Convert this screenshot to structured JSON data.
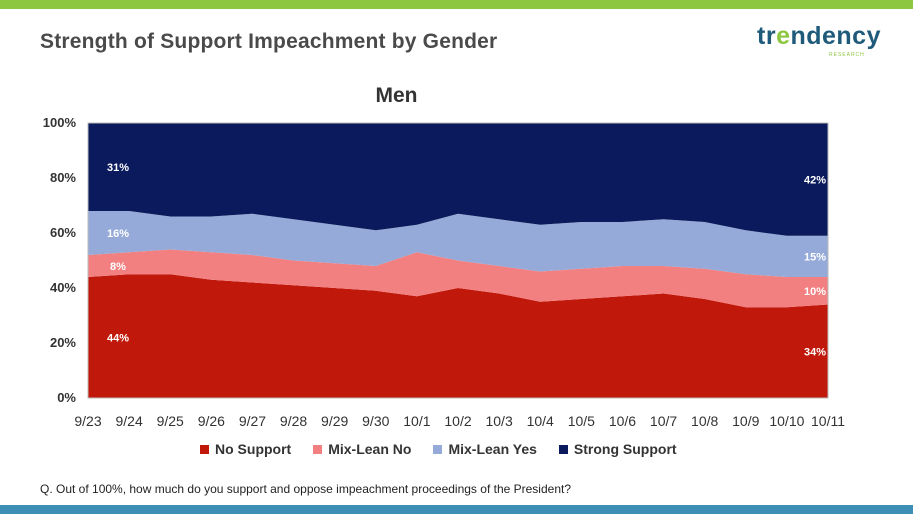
{
  "slide": {
    "title": "Strength of Support Impeachment by Gender",
    "logo_text": "trendency",
    "logo_subtext": "RESEARCH",
    "question": "Q. Out of 100%, how much do you support and oppose impeachment proceedings of the President?"
  },
  "colors": {
    "top_bar": "#8dc63f",
    "bottom_bar": "#3d8fb5"
  },
  "chart_data": {
    "type": "area",
    "stacked": true,
    "title": "Men",
    "xlabel": "",
    "ylabel": "",
    "ylim": [
      0,
      100
    ],
    "yticks": [
      "0%",
      "20%",
      "40%",
      "60%",
      "80%",
      "100%"
    ],
    "x": [
      "9/23",
      "9/24",
      "9/25",
      "9/26",
      "9/27",
      "9/28",
      "9/29",
      "9/30",
      "10/1",
      "10/2",
      "10/3",
      "10/4",
      "10/5",
      "10/6",
      "10/7",
      "10/8",
      "10/9",
      "10/10",
      "10/11"
    ],
    "legend_position": "bottom",
    "grid": false,
    "series": [
      {
        "name": "No Support",
        "color": "#c0180a",
        "values": [
          44,
          45,
          45,
          43,
          42,
          41,
          40,
          39,
          37,
          40,
          38,
          35,
          36,
          37,
          38,
          36,
          33,
          33,
          34
        ]
      },
      {
        "name": "Mix-Lean No",
        "color": "#f28080",
        "values": [
          8,
          8,
          9,
          10,
          10,
          9,
          9,
          9,
          16,
          10,
          10,
          11,
          11,
          11,
          10,
          11,
          12,
          11,
          10
        ]
      },
      {
        "name": "Mix-Lean Yes",
        "color": "#95aad8",
        "values": [
          16,
          15,
          12,
          13,
          15,
          15,
          14,
          13,
          10,
          17,
          17,
          17,
          17,
          16,
          17,
          17,
          16,
          15,
          15
        ]
      },
      {
        "name": "Strong Support",
        "color": "#0a1a5c",
        "values": [
          31,
          32,
          34,
          34,
          33,
          35,
          37,
          39,
          37,
          33,
          35,
          37,
          36,
          36,
          35,
          36,
          39,
          41,
          42
        ]
      }
    ],
    "data_labels": [
      {
        "series": "Strong Support",
        "index": 0,
        "text": "31%"
      },
      {
        "series": "Mix-Lean Yes",
        "index": 0,
        "text": "16%"
      },
      {
        "series": "Mix-Lean No",
        "index": 0,
        "text": "8%"
      },
      {
        "series": "No Support",
        "index": 0,
        "text": "44%"
      },
      {
        "series": "Strong Support",
        "index": 18,
        "text": "42%"
      },
      {
        "series": "Mix-Lean Yes",
        "index": 18,
        "text": "15%"
      },
      {
        "series": "Mix-Lean No",
        "index": 18,
        "text": "10%"
      },
      {
        "series": "No Support",
        "index": 18,
        "text": "34%"
      }
    ]
  }
}
